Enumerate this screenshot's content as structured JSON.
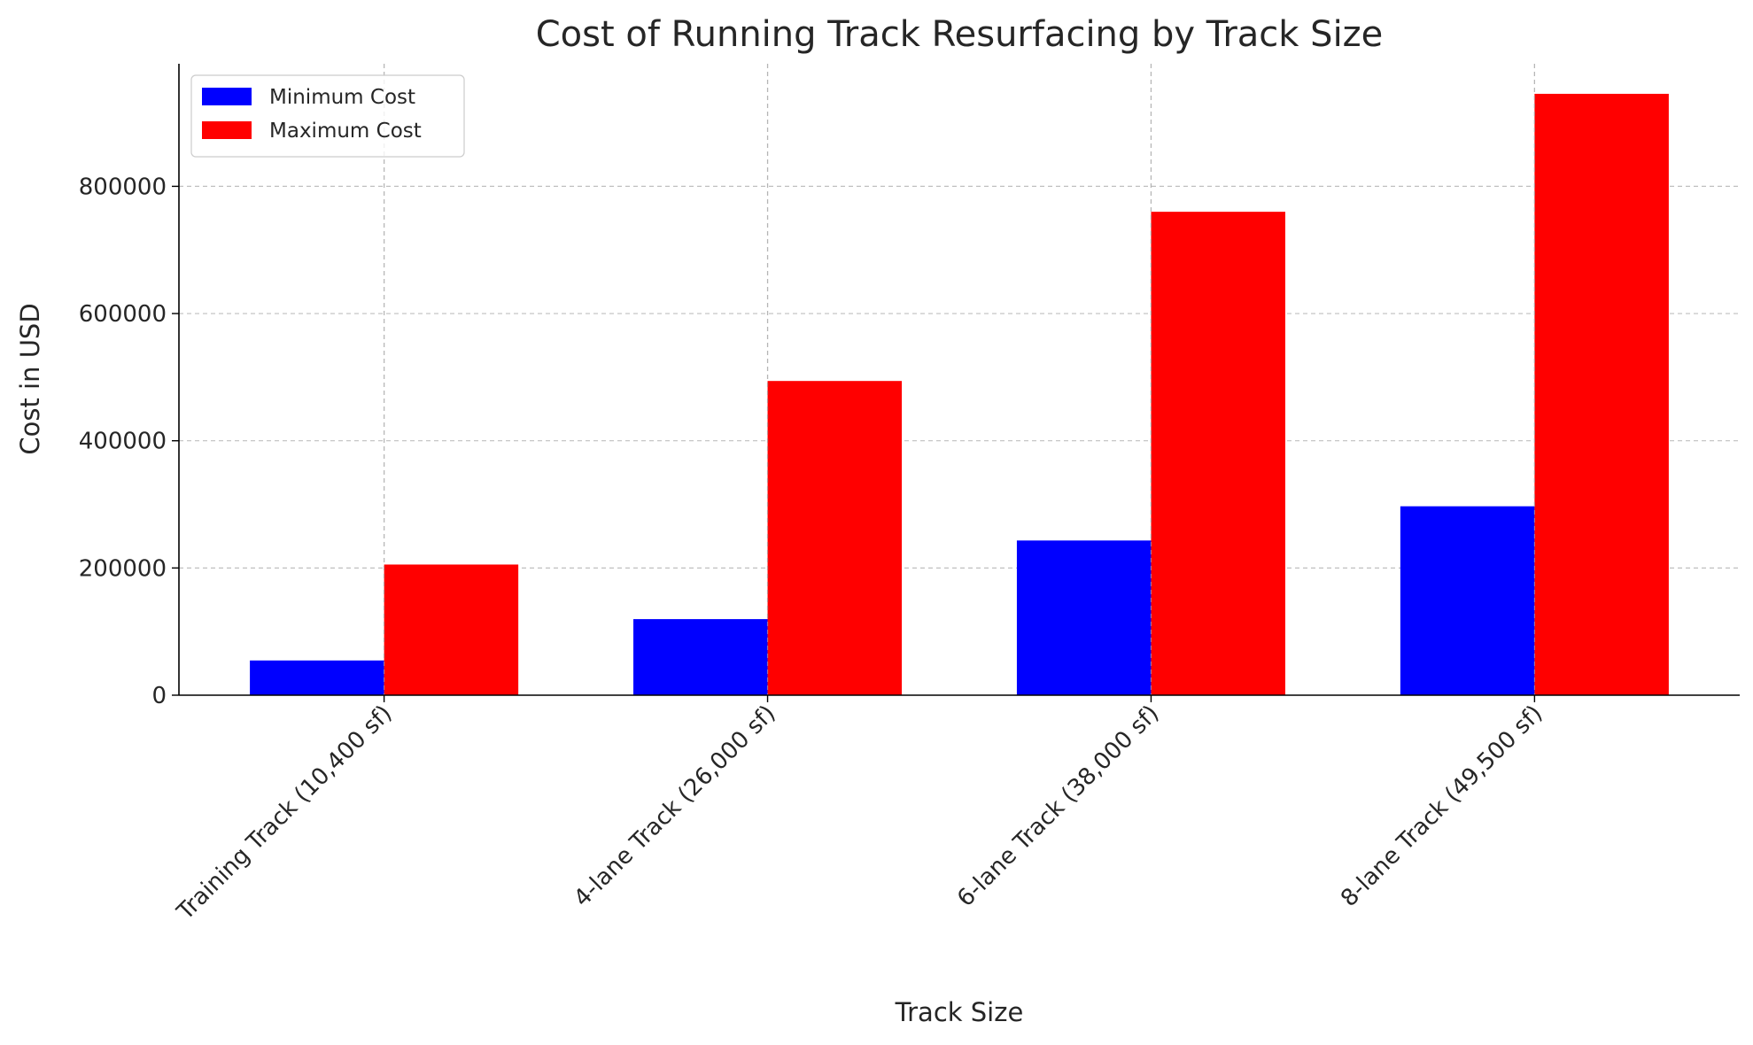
{
  "chart_data": {
    "type": "bar",
    "title": "Cost of Running Track Resurfacing by Track Size",
    "xlabel": "Track Size",
    "ylabel": "Cost in USD",
    "categories": [
      "Training Track (10,400 sf)",
      "4-lane Track (26,000 sf)",
      "6-lane Track (38,000 sf)",
      "8-lane Track (49,500 sf)"
    ],
    "series": [
      {
        "name": "Minimum Cost",
        "color": "#0000ff",
        "values": [
          54600,
          119600,
          243200,
          297000
        ]
      },
      {
        "name": "Maximum Cost",
        "color": "#ff0000",
        "values": [
          205400,
          494000,
          760000,
          945450
        ]
      }
    ],
    "ylim": [
      0,
      992700
    ],
    "xlim": [
      -0.535,
      3.535
    ],
    "bar_width": 0.35,
    "yticks": [
      0,
      200000,
      400000,
      600000,
      800000
    ],
    "ytick_labels": [
      "0",
      "200000",
      "400000",
      "600000",
      "800000"
    ],
    "grid": true,
    "legend_position": "top-left"
  }
}
